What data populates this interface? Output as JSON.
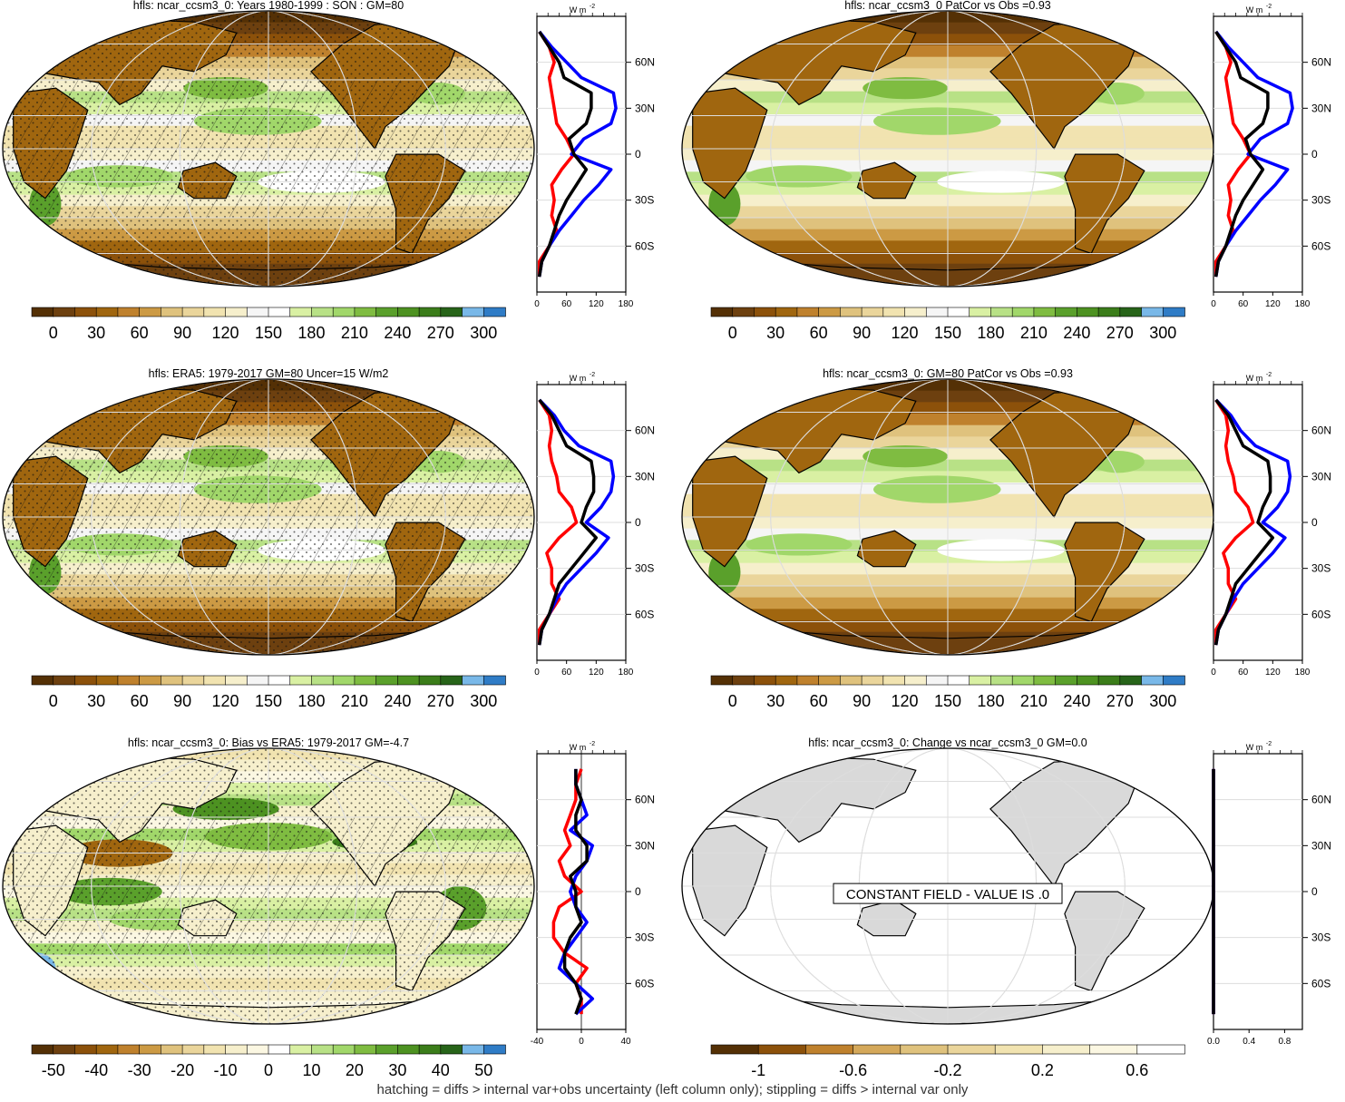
{
  "palettes": {
    "seq": [
      "#543005",
      "#6d400f",
      "#8c510a",
      "#a0660f",
      "#bf812d",
      "#cc9a44",
      "#dfc27d",
      "#ead59b",
      "#f1e3b0",
      "#f6efcc",
      "#f5f5f5",
      "#ffffff",
      "#d9f0a3",
      "#b8e186",
      "#a1d76a",
      "#7fbc41",
      "#5aa02b",
      "#4d9221",
      "#3b7d1a",
      "#276419",
      "#79b8e8",
      "#2f7cc6"
    ],
    "div": [
      "#543005",
      "#6d400f",
      "#8c510a",
      "#a0660f",
      "#bf812d",
      "#cc9a44",
      "#dfc27d",
      "#ead59b",
      "#f1e3b0",
      "#f6efcc",
      "#fbf7e2",
      "#ffffff",
      "#d9f0a3",
      "#b8e186",
      "#a1d76a",
      "#7fbc41",
      "#5aa02b",
      "#4d9221",
      "#3b7d1a",
      "#276419",
      "#79b8e8",
      "#2f7cc6"
    ],
    "chg": [
      "#543005",
      "#8c510a",
      "#bf812d",
      "#d4a85a",
      "#dfc27d",
      "#ead59b",
      "#f1e3b0",
      "#f6efcc",
      "#fbf7e2",
      "#ffffff"
    ]
  },
  "line_colors": {
    "model": "#0000ff",
    "obs": "#ff0000",
    "mean": "#000000"
  },
  "footnote": "hatching = diffs > internal var+obs uncertainty (left column only); stippling = diffs > internal var only",
  "profile_unit": "W m",
  "profile_unit_sup": "-2",
  "lat_ticks": [
    "60N",
    "30N",
    "0",
    "30S",
    "60S"
  ],
  "chart_data": [
    {
      "type": "heatmap",
      "title": "hfls: ncar_ccsm3_0: Years 1980-1999 : SON : GM=80",
      "colorbar_labels": [
        "0",
        "30",
        "60",
        "90",
        "120",
        "150",
        "180",
        "210",
        "240",
        "270",
        "300"
      ],
      "profile_x_labels": [
        "0",
        "60",
        "120",
        "180"
      ],
      "profile_xlim": [
        0,
        180
      ],
      "hatching": true,
      "stippling": true,
      "profiles": {
        "lats": [
          80,
          70,
          60,
          50,
          40,
          30,
          20,
          10,
          0,
          -10,
          -20,
          -30,
          -40,
          -50,
          -60,
          -70,
          -80
        ],
        "model": [
          5,
          30,
          60,
          90,
          155,
          160,
          150,
          95,
          70,
          150,
          125,
          95,
          70,
          45,
          25,
          10,
          5
        ],
        "obs": [
          5,
          25,
          35,
          25,
          30,
          35,
          40,
          60,
          75,
          50,
          30,
          35,
          30,
          40,
          25,
          5,
          5
        ],
        "mean": [
          5,
          25,
          45,
          55,
          110,
          110,
          100,
          65,
          75,
          100,
          80,
          60,
          45,
          35,
          25,
          10,
          5
        ]
      }
    },
    {
      "type": "heatmap",
      "title": "hfls: ncar_ccsm3_0 PatCor vs Obs =0.93",
      "colorbar_labels": [
        "0",
        "30",
        "60",
        "90",
        "120",
        "150",
        "180",
        "210",
        "240",
        "270",
        "300"
      ],
      "profile_x_labels": [
        "0",
        "60",
        "120",
        "180"
      ],
      "profile_xlim": [
        0,
        180
      ],
      "hatching": false,
      "stippling": false,
      "profiles": {
        "lats": [
          80,
          70,
          60,
          50,
          40,
          30,
          20,
          10,
          0,
          -10,
          -20,
          -30,
          -40,
          -50,
          -60,
          -70,
          -80
        ],
        "model": [
          5,
          30,
          60,
          90,
          155,
          160,
          150,
          95,
          70,
          150,
          125,
          95,
          70,
          45,
          25,
          10,
          5
        ],
        "obs": [
          5,
          25,
          35,
          25,
          30,
          35,
          40,
          60,
          75,
          50,
          30,
          35,
          30,
          40,
          25,
          5,
          5
        ],
        "mean": [
          5,
          25,
          45,
          55,
          110,
          110,
          100,
          65,
          75,
          100,
          80,
          60,
          45,
          35,
          25,
          10,
          5
        ]
      }
    },
    {
      "type": "heatmap",
      "title": "hfls: ERA5: 1979-2017 GM=80 Uncer=15 W/m2",
      "colorbar_labels": [
        "0",
        "30",
        "60",
        "90",
        "120",
        "150",
        "180",
        "210",
        "240",
        "270",
        "300"
      ],
      "profile_x_labels": [
        "0",
        "60",
        "120",
        "180"
      ],
      "profile_xlim": [
        0,
        180
      ],
      "hatching": true,
      "stippling": true,
      "profiles": {
        "lats": [
          80,
          70,
          60,
          50,
          40,
          30,
          20,
          10,
          0,
          -10,
          -20,
          -30,
          -40,
          -50,
          -60,
          -70,
          -80
        ],
        "model": [
          5,
          35,
          55,
          85,
          150,
          155,
          150,
          130,
          100,
          145,
          120,
          90,
          60,
          40,
          25,
          10,
          5
        ],
        "obs": [
          5,
          25,
          30,
          25,
          30,
          40,
          45,
          70,
          80,
          45,
          20,
          30,
          30,
          45,
          25,
          5,
          5
        ],
        "mean": [
          5,
          30,
          45,
          60,
          110,
          115,
          115,
          100,
          90,
          120,
          95,
          70,
          45,
          35,
          25,
          10,
          5
        ]
      }
    },
    {
      "type": "heatmap",
      "title": "hfls: ncar_ccsm3_0: GM=80 PatCor vs Obs =0.93",
      "colorbar_labels": [
        "0",
        "30",
        "60",
        "90",
        "120",
        "150",
        "180",
        "210",
        "240",
        "270",
        "300"
      ],
      "profile_x_labels": [
        "0",
        "60",
        "120",
        "180"
      ],
      "profile_xlim": [
        0,
        180
      ],
      "hatching": false,
      "stippling": false,
      "profiles": {
        "lats": [
          80,
          70,
          60,
          50,
          40,
          30,
          20,
          10,
          0,
          -10,
          -20,
          -30,
          -40,
          -50,
          -60,
          -70,
          -80
        ],
        "model": [
          5,
          35,
          55,
          85,
          150,
          155,
          150,
          130,
          100,
          145,
          120,
          90,
          60,
          40,
          25,
          10,
          5
        ],
        "obs": [
          5,
          25,
          30,
          25,
          30,
          40,
          45,
          70,
          80,
          45,
          20,
          30,
          30,
          45,
          25,
          5,
          5
        ],
        "mean": [
          5,
          30,
          45,
          60,
          110,
          115,
          115,
          100,
          90,
          120,
          95,
          70,
          45,
          35,
          25,
          10,
          5
        ]
      }
    },
    {
      "type": "heatmap",
      "title": "hfls: ncar_ccsm3_0: Bias vs ERA5: 1979-2017  GM=-4.7",
      "colorbar_labels": [
        "-50",
        "-40",
        "-30",
        "-20",
        "-10",
        "0",
        "10",
        "20",
        "30",
        "40",
        "50"
      ],
      "profile_x_labels": [
        "-40",
        "0",
        "40"
      ],
      "profile_xlim": [
        -40,
        40
      ],
      "hatching": true,
      "stippling": true,
      "profiles": {
        "lats": [
          80,
          70,
          60,
          50,
          40,
          30,
          20,
          10,
          0,
          -10,
          -20,
          -30,
          -40,
          -50,
          -60,
          -70,
          -80
        ],
        "model": [
          -5,
          -5,
          0,
          5,
          -10,
          10,
          5,
          -5,
          -10,
          -5,
          5,
          -5,
          -15,
          -20,
          -5,
          10,
          -5
        ],
        "obs": [
          0,
          -5,
          -5,
          -10,
          -15,
          -10,
          -20,
          -15,
          0,
          -20,
          -25,
          -25,
          -15,
          5,
          -5,
          0,
          0
        ],
        "mean": [
          -5,
          -5,
          0,
          -5,
          -5,
          5,
          5,
          -10,
          -5,
          -5,
          0,
          -10,
          -15,
          -15,
          -5,
          0,
          -5
        ]
      }
    },
    {
      "type": "heatmap",
      "title": "hfls: ncar_ccsm3_0: Change vs ncar_ccsm3_0 GM=0.0",
      "annotation": "CONSTANT FIELD - VALUE IS .0",
      "colorbar_labels": [
        "-1",
        "-0.6",
        "-0.2",
        "0.2",
        "0.6"
      ],
      "profile_x_labels": [
        "0.0",
        "0.4",
        "0.8"
      ],
      "profile_xlim": [
        0,
        1
      ],
      "hatching": false,
      "stippling": false,
      "profiles": {
        "lats": [
          80,
          70,
          60,
          50,
          40,
          30,
          20,
          10,
          0,
          -10,
          -20,
          -30,
          -40,
          -50,
          -60,
          -70,
          -80
        ],
        "model": [
          0,
          0,
          0,
          0,
          0,
          0,
          0,
          0,
          0,
          0,
          0,
          0,
          0,
          0,
          0,
          0,
          0
        ],
        "obs": [
          0,
          0,
          0,
          0,
          0,
          0,
          0,
          0,
          0,
          0,
          0,
          0,
          0,
          0,
          0,
          0,
          0
        ],
        "mean": [
          0,
          0,
          0,
          0,
          0,
          0,
          0,
          0,
          0,
          0,
          0,
          0,
          0,
          0,
          0,
          0,
          0
        ]
      }
    }
  ]
}
